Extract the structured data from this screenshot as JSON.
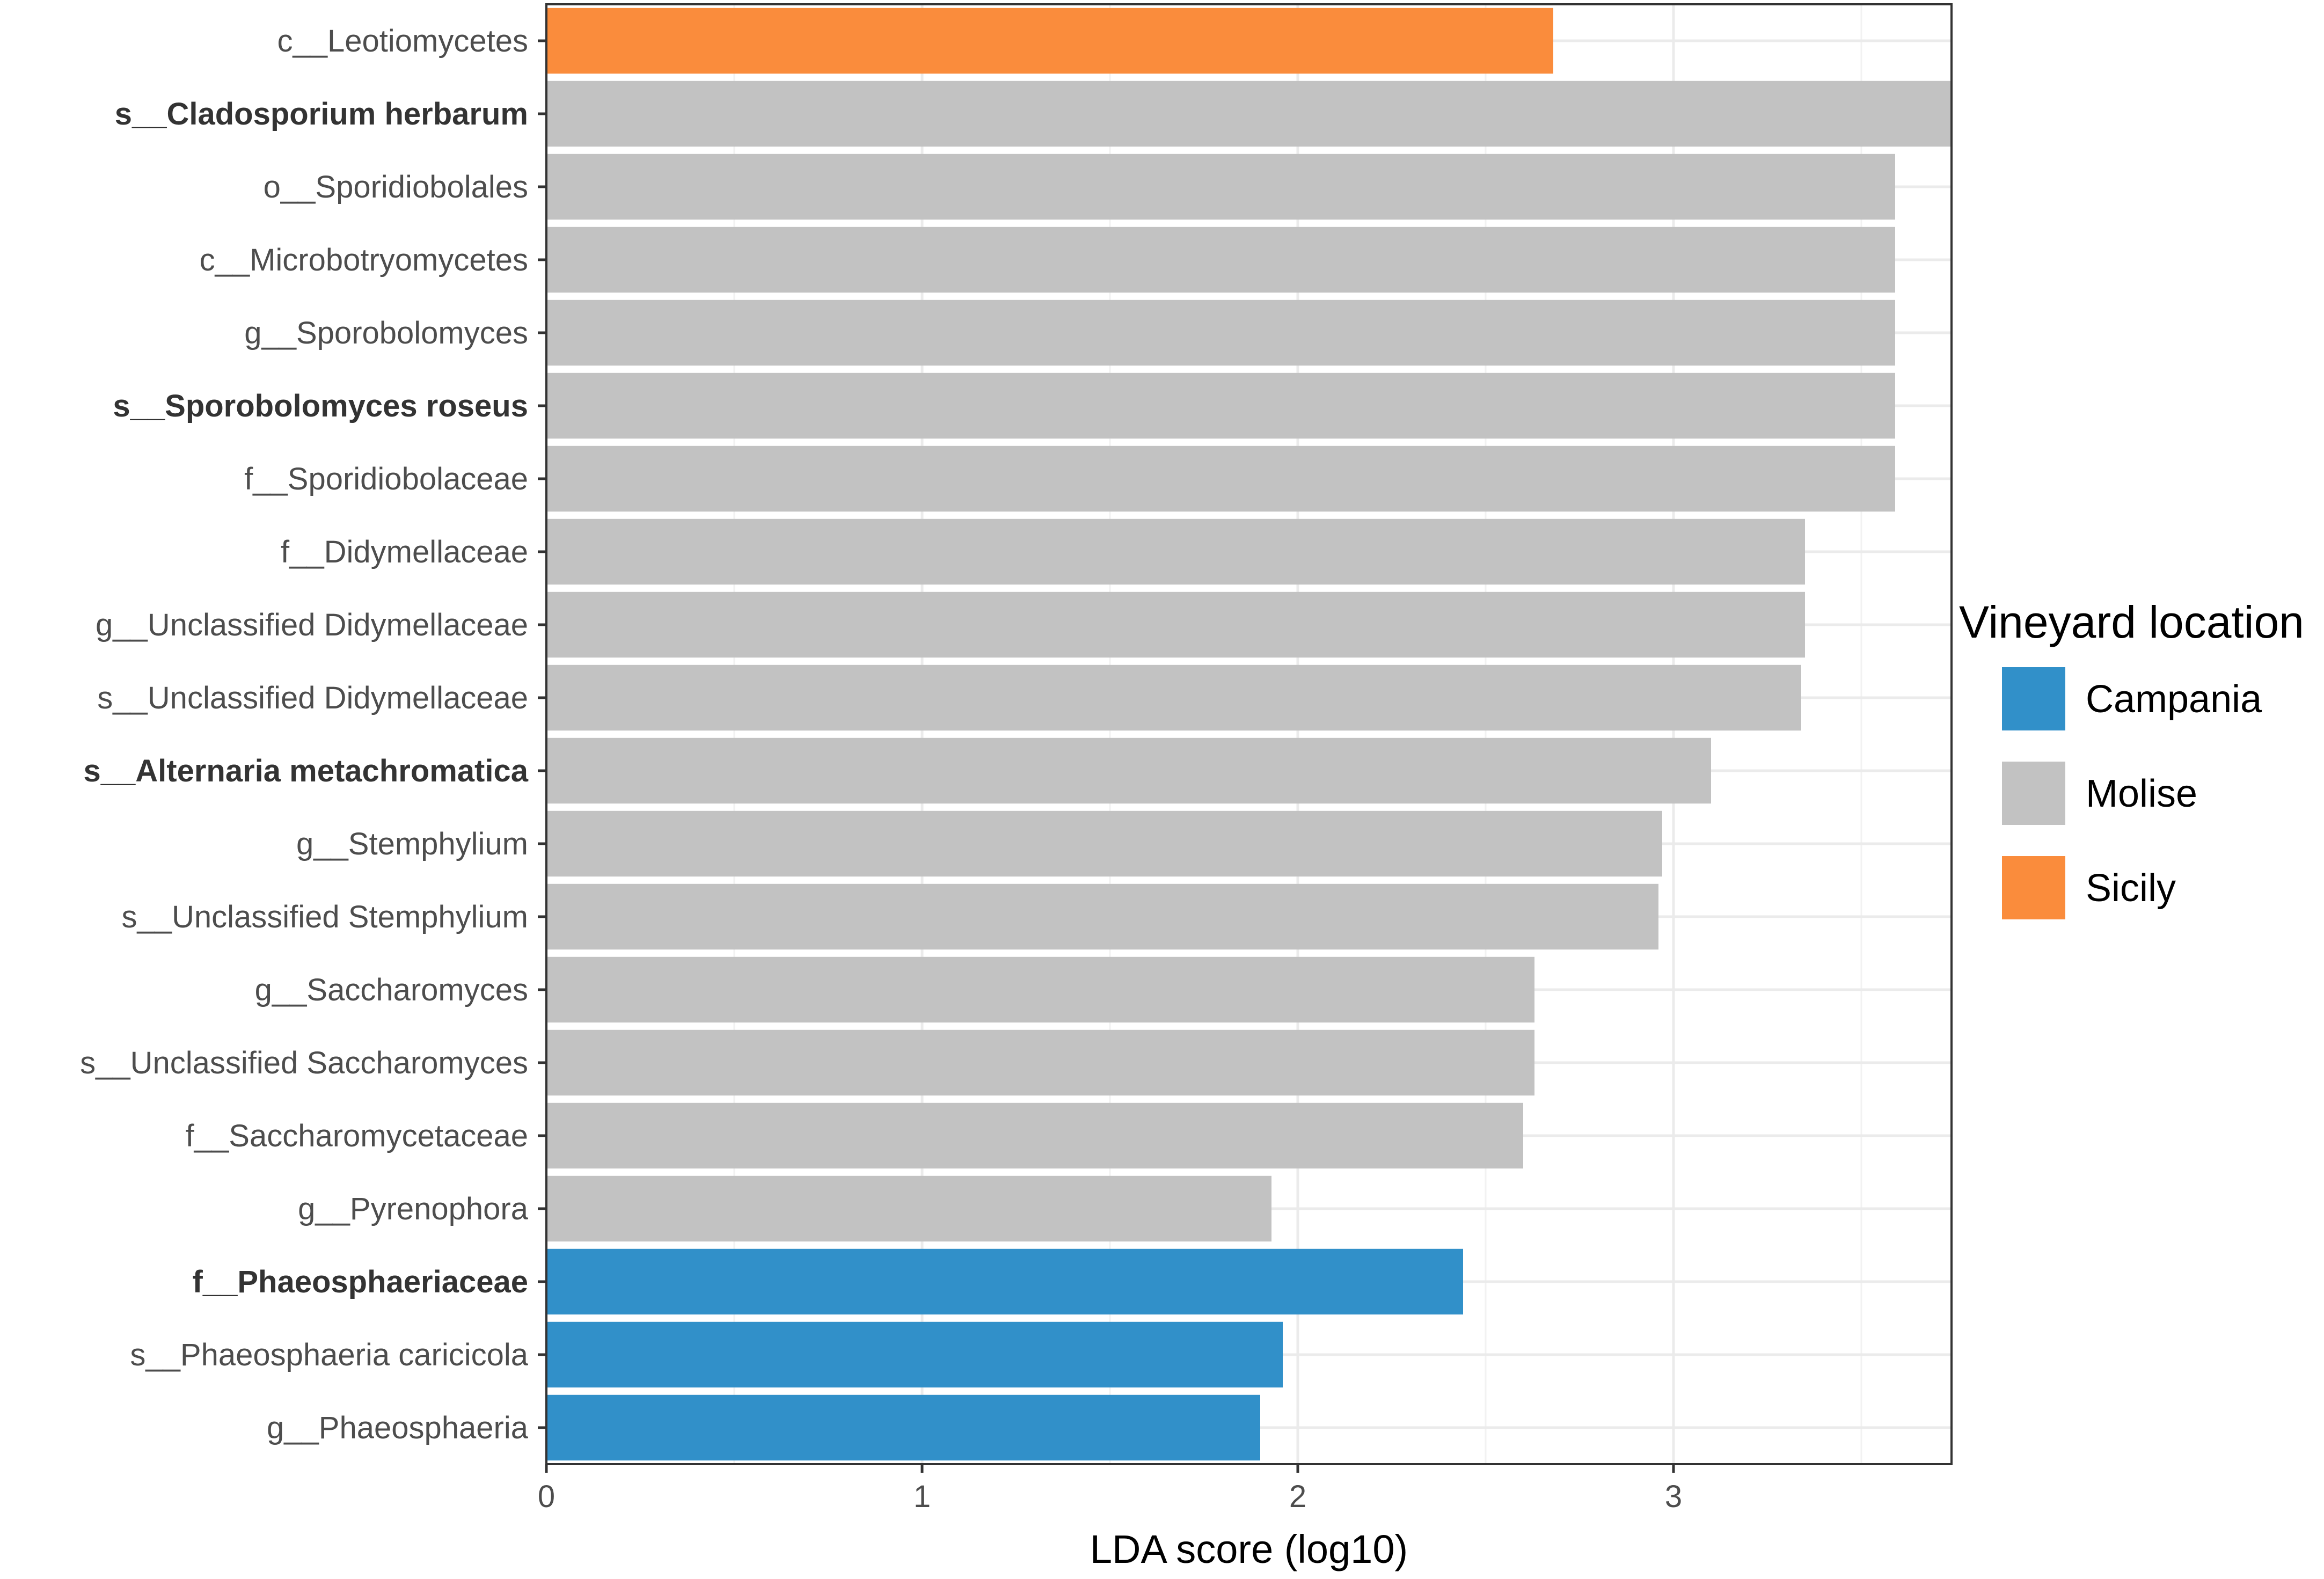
{
  "chart_data": {
    "type": "bar",
    "orientation": "horizontal",
    "xlabel": "LDA score (log10)",
    "ylabel": "",
    "xlim": [
      0,
      3.74
    ],
    "xticks": [
      0,
      1,
      2,
      3
    ],
    "grid": true,
    "legend": {
      "title": "Vineyard location",
      "placement": "right",
      "entries": [
        {
          "name": "Campania",
          "color": "#3190C9"
        },
        {
          "name": "Molise",
          "color": "#C2C2C2"
        },
        {
          "name": "Sicily",
          "color": "#FA8C3C"
        }
      ]
    },
    "bars": [
      {
        "label": "c__Leotiomycetes",
        "value": 2.68,
        "group": "Sicily",
        "bold": false
      },
      {
        "label": "s__Cladosporium herbarum",
        "value": 3.74,
        "group": "Molise",
        "bold": true
      },
      {
        "label": "o__Sporidiobolales",
        "value": 3.59,
        "group": "Molise",
        "bold": false
      },
      {
        "label": "c__Microbotryomycetes",
        "value": 3.59,
        "group": "Molise",
        "bold": false
      },
      {
        "label": "g__Sporobolomyces",
        "value": 3.59,
        "group": "Molise",
        "bold": false
      },
      {
        "label": "s__Sporobolomyces roseus",
        "value": 3.59,
        "group": "Molise",
        "bold": true
      },
      {
        "label": "f__Sporidiobolaceae",
        "value": 3.59,
        "group": "Molise",
        "bold": false
      },
      {
        "label": "f__Didymellaceae",
        "value": 3.35,
        "group": "Molise",
        "bold": false
      },
      {
        "label": "g__Unclassified Didymellaceae",
        "value": 3.35,
        "group": "Molise",
        "bold": false
      },
      {
        "label": "s__Unclassified Didymellaceae",
        "value": 3.34,
        "group": "Molise",
        "bold": false
      },
      {
        "label": "s__Alternaria metachromatica",
        "value": 3.1,
        "group": "Molise",
        "bold": true
      },
      {
        "label": "g__Stemphylium",
        "value": 2.97,
        "group": "Molise",
        "bold": false
      },
      {
        "label": "s__Unclassified  Stemphylium",
        "value": 2.96,
        "group": "Molise",
        "bold": false
      },
      {
        "label": "g__Saccharomyces",
        "value": 2.63,
        "group": "Molise",
        "bold": false
      },
      {
        "label": "s__Unclassified  Saccharomyces",
        "value": 2.63,
        "group": "Molise",
        "bold": false
      },
      {
        "label": "f__Saccharomycetaceae",
        "value": 2.6,
        "group": "Molise",
        "bold": false
      },
      {
        "label": "g__Pyrenophora",
        "value": 1.93,
        "group": "Molise",
        "bold": false
      },
      {
        "label": "f__Phaeosphaeriaceae",
        "value": 2.44,
        "group": "Campania",
        "bold": true
      },
      {
        "label": "s__Phaeosphaeria caricicola",
        "value": 1.96,
        "group": "Campania",
        "bold": false
      },
      {
        "label": "g__Phaeosphaeria",
        "value": 1.9,
        "group": "Campania",
        "bold": false
      }
    ]
  }
}
